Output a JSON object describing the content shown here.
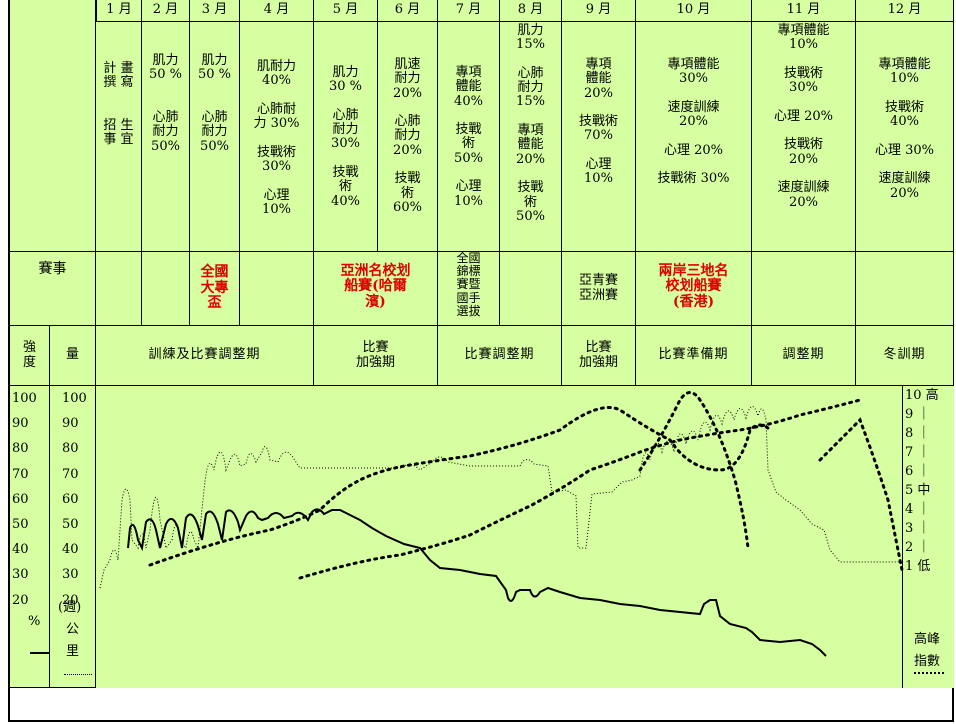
{
  "months": [
    "1 月",
    "2 月",
    "3 月",
    "4 月",
    "5 月",
    "6 月",
    "7 月",
    "8 月",
    "9 月",
    "10 月",
    "11 月",
    "12 月"
  ],
  "training": {
    "m1": "計 畫\n撰 寫\n\n\n招 生\n事 宜",
    "m2": "肌力\n50 %\n\n\n心肺\n耐力\n50%",
    "m3": "肌力\n50 %\n\n\n心肺\n耐力\n50%",
    "m4": "肌耐力\n40%\n\n心肺耐\n力 30%\n\n技戰術\n30%\n\n心理\n10%",
    "m5": "肌力\n30 %\n\n心肺\n耐力\n30%\n\n技戰\n術\n40%",
    "m6": "肌速\n耐力\n20%\n\n心肺\n耐力\n20%\n\n技戰\n術\n60%",
    "m7": "專項\n體能\n40%\n\n技戰\n術\n50%\n\n心理\n10%",
    "m8": "肌力\n15%\n\n心肺\n耐力\n15%\n\n專項\n體能\n20%\n\n技戰\n術\n50%",
    "m9": "專項\n體能\n20%\n\n技戰術\n70%\n\n心理\n10%",
    "m10": "專項體能\n30%\n\n速度訓練\n20%\n\n心理 20%\n\n技戰術 30%",
    "m11": "專項體能\n10%\n\n技戰術\n30%\n\n心理 20%\n\n技戰術\n20%\n\n速度訓練\n20%",
    "m12": "專項體能\n10%\n\n技戰術\n40%\n\n心理 30%\n\n速度訓練\n20%"
  },
  "events": {
    "label": "賽事",
    "national_college": "全國\n大專\n盃",
    "asia_regatta": "亞洲名校划\n船賽(哈爾\n濱)",
    "national_trials": "全國\n錦標\n賽暨\n國手\n選拔",
    "asian_youth": "亞青賽\n亞洲賽",
    "cross_strait": "兩岸三地名\n校划船賽\n(香港)"
  },
  "phases": {
    "intensity": "強\n度",
    "volume": "量",
    "p1": "訓練及比賽調整期",
    "p2": "比賽\n加強期",
    "p3": "比賽調整期",
    "p4": "比賽\n加強期",
    "p5": "比賽準備期",
    "p6": "調整期",
    "p7": "冬訓期"
  },
  "axis": {
    "intensity_ticks": [
      "100",
      "90",
      "80",
      "70",
      "60",
      "50",
      "40",
      "30",
      "20"
    ],
    "volume_ticks": [
      "100",
      "90",
      "80",
      "70",
      "60",
      "50",
      "40",
      "30",
      "20"
    ],
    "weeks_label": "(週)",
    "percent": "%",
    "km1": "公",
    "km2": "里",
    "peak_ticks": [
      "10 高",
      "9 ｜",
      "8 ｜",
      "7 ｜",
      "6 ｜",
      "5 中",
      "4 ｜",
      "3 ｜",
      "2 ｜",
      "1 低"
    ],
    "peak_label1": "高峰",
    "peak_label2": "指數"
  }
}
